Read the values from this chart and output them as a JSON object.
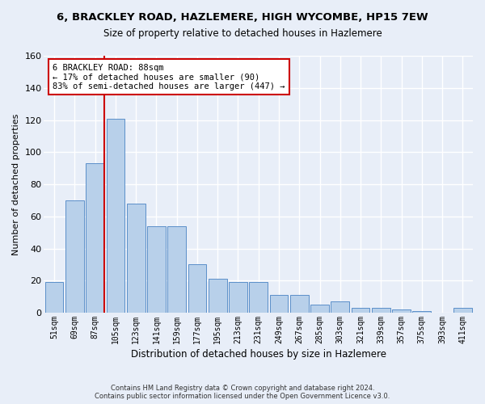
{
  "title_line1": "6, BRACKLEY ROAD, HAZLEMERE, HIGH WYCOMBE, HP15 7EW",
  "title_line2": "Size of property relative to detached houses in Hazlemere",
  "xlabel": "Distribution of detached houses by size in Hazlemere",
  "ylabel": "Number of detached properties",
  "footnote1": "Contains HM Land Registry data © Crown copyright and database right 2024.",
  "footnote2": "Contains public sector information licensed under the Open Government Licence v3.0.",
  "categories": [
    "51sqm",
    "69sqm",
    "87sqm",
    "105sqm",
    "123sqm",
    "141sqm",
    "159sqm",
    "177sqm",
    "195sqm",
    "213sqm",
    "231sqm",
    "249sqm",
    "267sqm",
    "285sqm",
    "303sqm",
    "321sqm",
    "339sqm",
    "357sqm",
    "375sqm",
    "393sqm",
    "411sqm"
  ],
  "values": [
    19,
    70,
    93,
    121,
    68,
    54,
    54,
    30,
    21,
    19,
    19,
    11,
    11,
    5,
    7,
    3,
    3,
    2,
    1,
    0,
    3
  ],
  "bar_color": "#b8d0ea",
  "bar_edge_color": "#5b8fc9",
  "background_color": "#e8eef8",
  "grid_color": "#ffffff",
  "property_label": "6 BRACKLEY ROAD: 88sqm",
  "annotation_line1": "← 17% of detached houses are smaller (90)",
  "annotation_line2": "83% of semi-detached houses are larger (447) →",
  "annotation_box_color": "#ffffff",
  "annotation_border_color": "#cc0000",
  "vline_color": "#cc0000",
  "ylim": [
    0,
    160
  ],
  "yticks": [
    0,
    20,
    40,
    60,
    80,
    100,
    120,
    140,
    160
  ],
  "vline_pos": 2.45
}
